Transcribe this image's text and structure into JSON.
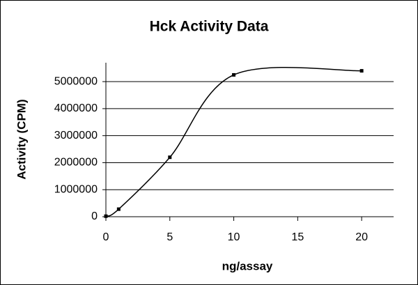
{
  "chart_data": {
    "type": "line",
    "title": "Hck Activity Data",
    "x_label": "ng/assay",
    "y_label": "Activity (CPM)",
    "x": [
      0,
      1,
      5,
      10,
      20
    ],
    "series": [
      {
        "name": "Hck",
        "color": "#000000",
        "values": [
          20000,
          280000,
          2200000,
          5250000,
          5400000
        ]
      }
    ],
    "xlim": [
      0,
      22.5
    ],
    "xticks": [
      0,
      5,
      10,
      15,
      20
    ],
    "ylim": [
      0,
      5700000
    ],
    "yticks": [
      0,
      1000000,
      2000000,
      3000000,
      4000000,
      5000000
    ],
    "grid": true,
    "smooth": true
  }
}
